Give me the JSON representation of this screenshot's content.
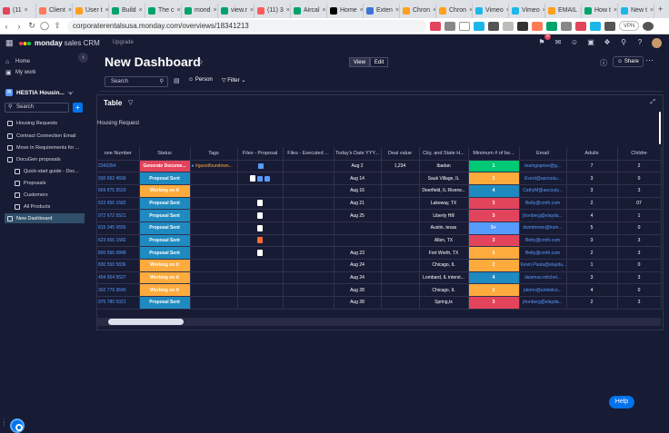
{
  "browser": {
    "tabs": [
      {
        "label": "(11",
        "color": "#e2445c"
      },
      {
        "label": "Client",
        "color": "#ff7a59"
      },
      {
        "label": "User t",
        "color": "#ff9f1c"
      },
      {
        "label": "Build",
        "color": "#00a36c"
      },
      {
        "label": "The c",
        "color": "#00a36c"
      },
      {
        "label": "mond",
        "color": "#00a36c"
      },
      {
        "label": "view.r",
        "color": "#00a36c"
      },
      {
        "label": "(11) 3",
        "color": "#ff5a5a"
      },
      {
        "label": "Aircal",
        "color": "#00a36c"
      },
      {
        "label": "Home",
        "color": "#000000"
      },
      {
        "label": "Exten",
        "color": "#3b73d9"
      },
      {
        "label": "Chron",
        "color": "#ff9f1c"
      },
      {
        "label": "Chron",
        "color": "#ff9f1c"
      },
      {
        "label": "Vimeo",
        "color": "#1ab7ea"
      },
      {
        "label": "Vimeo",
        "color": "#1ab7ea"
      },
      {
        "label": "EMAIL",
        "color": "#ff9f1c"
      },
      {
        "label": "How t",
        "color": "#00a36c"
      },
      {
        "label": "New t",
        "color": "#1ab7ea"
      }
    ],
    "url": "corporaterentalsusa.monday.com/overviews/18341213",
    "vpn_label": "VPN"
  },
  "app": {
    "logo_brand": "monday",
    "logo_product": "sales CRM",
    "upgrade": "Upgrade",
    "notif_count": "9"
  },
  "sidebar": {
    "home": "Home",
    "my_work": "My work",
    "workspace": "HESTIA Housin...",
    "workspace_initial": "H",
    "search": "Search",
    "items": [
      {
        "label": "Housing Requests",
        "active": false
      },
      {
        "label": "Contract Connection Email",
        "active": false
      },
      {
        "label": "Move In Requirements for ...",
        "active": false
      },
      {
        "label": "DocuGen proposals",
        "active": false
      },
      {
        "label": "Quick-start guide - Doc...",
        "active": false
      },
      {
        "label": "Proposals",
        "active": false
      },
      {
        "label": "Customers",
        "active": false
      },
      {
        "label": "All Products",
        "active": false
      },
      {
        "label": "New Dashboard",
        "active": true
      }
    ]
  },
  "main": {
    "title": "New Dashboard",
    "view": "View",
    "edit": "Edit",
    "share": "Share",
    "search_placeholder": "Search",
    "person": "Person",
    "filter": "Filter"
  },
  "widget": {
    "title": "Table",
    "group_title": "Housing Request",
    "columns": [
      "one Number",
      "Status",
      "Tags",
      "Files - Proposal",
      "Files - Executed ...",
      "Today's Date YYY...",
      "Deal value",
      "City, and State H...",
      "Minimum # of be...",
      "Email",
      "Adults",
      "Childre"
    ],
    "rows": [
      {
        "phone": "2343354",
        "status": "Generate Docume...",
        "status_color": "#e2445c",
        "tag": "#guestfoundown...",
        "files": "doc2",
        "date": "Aug 2",
        "deal": "1,234",
        "city": "Ibadan",
        "min": "1",
        "min_color": "#00c875",
        "email": "teamgopriee@g...",
        "adults": "7",
        "children": "2"
      },
      {
        "phone": "930 662 4699",
        "status": "Proposal Sent",
        "status_color": "#1f8ac0",
        "tag": "",
        "files": "file-doc2",
        "date": "Aug 14",
        "deal": "",
        "city": "Sauk Village, IL",
        "min": "2",
        "min_color": "#fdab3d",
        "email": "Event@aecoutu...",
        "adults": "3",
        "children": "0"
      },
      {
        "phone": "669 875 5529",
        "status": "Working on it",
        "status_color": "#fdab3d",
        "tag": "",
        "files": "",
        "date": "Aug 16",
        "deal": "",
        "city": "Deerfield, IL Riverw...",
        "min": "4",
        "min_color": "#1f8ac0",
        "email": "CathyM@aecouty...",
        "adults": "3",
        "children": "3"
      },
      {
        "phone": "623 656 1582",
        "status": "Proposal Sent",
        "status_color": "#1f8ac0",
        "tag": "",
        "files": "file",
        "date": "Aug 21",
        "deal": "",
        "city": "Lakeway, TX",
        "min": "3",
        "min_color": "#e2445c",
        "email": "Betty@cmth.com",
        "adults": "2",
        "children": "07"
      },
      {
        "phone": "972 672 5521",
        "status": "Proposal Sent",
        "status_color": "#1f8ac0",
        "tag": "",
        "files": "file",
        "date": "Aug 25",
        "deal": "",
        "city": "Liberty Hill",
        "min": "3",
        "min_color": "#e2445c",
        "email": "jhonberg@elayda...",
        "adults": "4",
        "children": "1"
      },
      {
        "phone": "815 345 0555",
        "status": "Proposal Sent",
        "status_color": "#1f8ac0",
        "tag": "",
        "files": "file",
        "date": "",
        "deal": "",
        "city": "Austin, texas",
        "min": "5+",
        "min_color": "#579bfc",
        "email": "dwmbrown@hom...",
        "adults": "5",
        "children": "0"
      },
      {
        "phone": "623 656 1582",
        "status": "Proposal Sent",
        "status_color": "#1f8ac0",
        "tag": "",
        "files": "pdf",
        "date": "",
        "deal": "",
        "city": "Allen, TX",
        "min": "3",
        "min_color": "#e2445c",
        "email": "Betty@cmth.com",
        "adults": "3",
        "children": "3"
      },
      {
        "phone": "800 566 0848",
        "status": "Proposal Sent",
        "status_color": "#1f8ac0",
        "tag": "",
        "files": "file",
        "date": "Aug 23",
        "deal": "",
        "city": "Fort Worth, TX",
        "min": "2",
        "min_color": "#fdab3d",
        "email": "Betty@cmth.com",
        "adults": "2",
        "children": "3"
      },
      {
        "phone": "830 550 5836",
        "status": "Working on it",
        "status_color": "#fdab3d",
        "tag": "",
        "files": "",
        "date": "Aug 24",
        "deal": "",
        "city": "Chicago, IL",
        "min": "2",
        "min_color": "#fdab3d",
        "email": "Kevin.Paula@elayda...",
        "adults": "1",
        "children": "0"
      },
      {
        "phone": "404 564 5527",
        "status": "Working on it",
        "status_color": "#fdab3d",
        "tag": "",
        "files": "",
        "date": "Aug 24",
        "deal": "",
        "city": "Lombard, IL interst...",
        "min": "4",
        "min_color": "#1f8ac0",
        "email": "dasimas.mitchel...",
        "adults": "3",
        "children": "3"
      },
      {
        "phone": "302 779 3645",
        "status": "Working on it",
        "status_color": "#fdab3d",
        "tag": "",
        "files": "",
        "date": "Aug 28",
        "deal": "",
        "city": "Chicago, IL",
        "min": "2",
        "min_color": "#fdab3d",
        "email": "jdemo@unitedco...",
        "adults": "4",
        "children": "0"
      },
      {
        "phone": "975 780 5321",
        "status": "Proposal Sent",
        "status_color": "#1f8ac0",
        "tag": "",
        "files": "",
        "date": "Aug 28",
        "deal": "",
        "city": "Spring,tx",
        "min": "3",
        "min_color": "#e2445c",
        "email": "jhonberg@elayda...",
        "adults": "2",
        "children": "3"
      }
    ]
  },
  "help": "Help"
}
